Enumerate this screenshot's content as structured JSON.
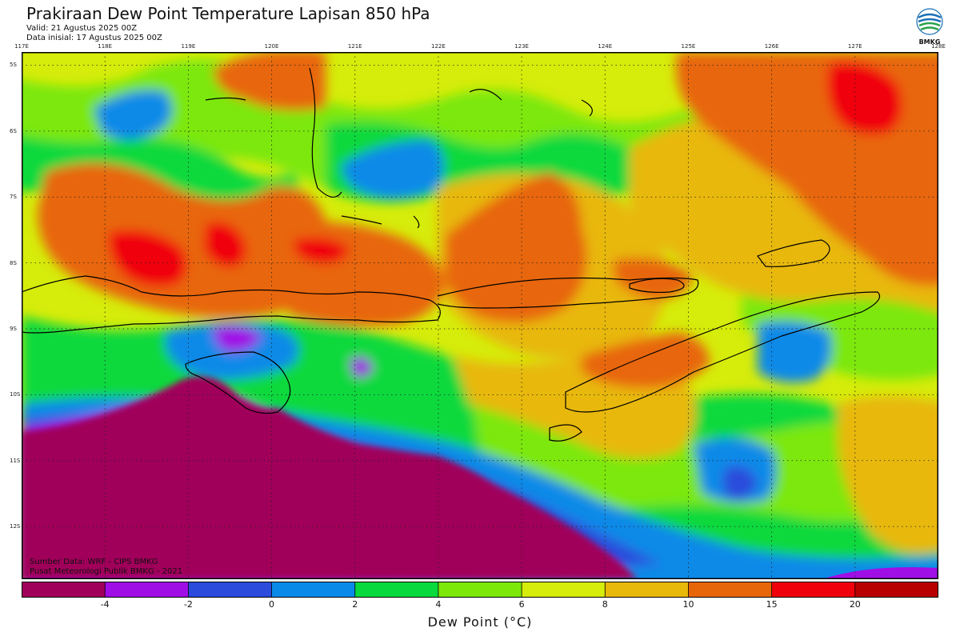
{
  "header": {
    "title": "Prakiraan Dew Point Temperature Lapisan 850 hPa",
    "valid": "Valid: 21 Agustus 2025 00Z",
    "init": "Data inisial: 17 Agustus 2025 00Z",
    "logo_text": "BMKG"
  },
  "map": {
    "lon_labels": [
      "117E",
      "118E",
      "119E",
      "120E",
      "121E",
      "122E",
      "123E",
      "124E",
      "125E",
      "126E",
      "127E",
      "128E"
    ],
    "lat_labels": [
      "5S",
      "6S",
      "7S",
      "8S",
      "9S",
      "10S",
      "11S",
      "12S"
    ],
    "lon_range": [
      117,
      128
    ],
    "lat_range": [
      -4.8,
      -12.8
    ],
    "credit_source": "Sumber Data: WRF - CIPS BMKG",
    "credit_org": "Pusat Meteorologi Publik BMKG - 2021"
  },
  "colorbar": {
    "labels": [
      "-4",
      "-2",
      "0",
      "2",
      "4",
      "6",
      "8",
      "10",
      "15",
      "20"
    ],
    "colors": [
      "#a0005a",
      "#a00ee6",
      "#2a4bdc",
      "#0a8ae8",
      "#08d93d",
      "#7ce80a",
      "#d6ec0a",
      "#e8b80a",
      "#e8660a",
      "#f0000a",
      "#b80000"
    ],
    "xlabel": "Dew Point (°C)"
  }
}
